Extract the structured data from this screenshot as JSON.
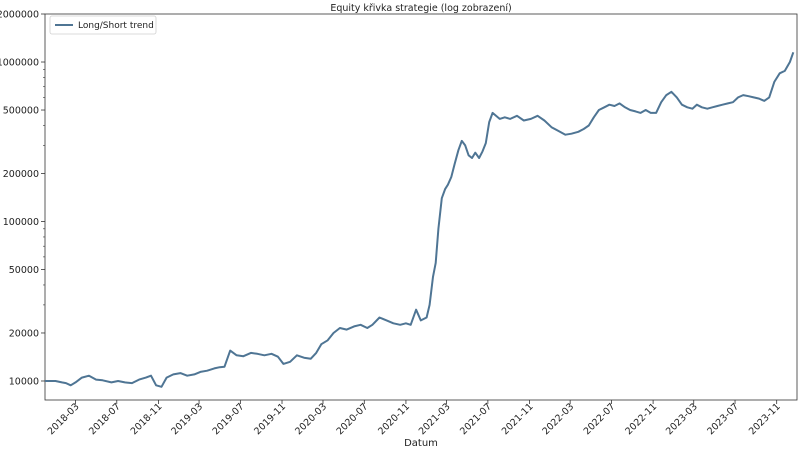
{
  "chart_data": {
    "type": "line",
    "title": "Equity křivka strategie (log zobrazení)",
    "xlabel": "Datum",
    "ylabel": "",
    "y_scale": "log",
    "ylim": [
      7600,
      2000000
    ],
    "xlim": [
      "2017-12-01",
      "2023-12-31"
    ],
    "grid": false,
    "legend_position": "top-left",
    "y_ticks": [
      {
        "value": 10000,
        "label": "10000"
      },
      {
        "value": 20000,
        "label": "20000"
      },
      {
        "value": 50000,
        "label": "50000"
      },
      {
        "value": 100000,
        "label": "100000"
      },
      {
        "value": 200000,
        "label": "200000"
      },
      {
        "value": 500000,
        "label": "500000"
      },
      {
        "value": 1000000,
        "label": "1000000"
      },
      {
        "value": 2000000,
        "label": "2000000"
      }
    ],
    "x_ticks": [
      "2018-03",
      "2018-07",
      "2018-11",
      "2019-03",
      "2019-07",
      "2019-11",
      "2020-03",
      "2020-07",
      "2020-11",
      "2021-03",
      "2021-07",
      "2021-11",
      "2022-03",
      "2022-07",
      "2022-11",
      "2023-03",
      "2023-07",
      "2023-11"
    ],
    "series": [
      {
        "name": "Long/Short trend",
        "color": "#4f7594",
        "x": [
          "2017-12-01",
          "2018-01-01",
          "2018-01-20",
          "2018-02-01",
          "2018-02-15",
          "2018-03-01",
          "2018-03-20",
          "2018-04-10",
          "2018-05-01",
          "2018-05-20",
          "2018-06-15",
          "2018-07-05",
          "2018-07-25",
          "2018-08-15",
          "2018-09-05",
          "2018-09-25",
          "2018-10-10",
          "2018-10-25",
          "2018-11-10",
          "2018-11-25",
          "2018-12-15",
          "2019-01-05",
          "2019-01-25",
          "2019-02-15",
          "2019-03-05",
          "2019-03-25",
          "2019-04-15",
          "2019-05-01",
          "2019-05-15",
          "2019-06-01",
          "2019-06-20",
          "2019-07-10",
          "2019-08-01",
          "2019-08-20",
          "2019-09-10",
          "2019-10-01",
          "2019-10-20",
          "2019-11-05",
          "2019-11-25",
          "2019-12-15",
          "2020-01-05",
          "2020-01-25",
          "2020-02-10",
          "2020-02-25",
          "2020-03-15",
          "2020-04-01",
          "2020-04-20",
          "2020-05-10",
          "2020-06-01",
          "2020-06-20",
          "2020-07-10",
          "2020-07-25",
          "2020-08-15",
          "2020-09-05",
          "2020-09-25",
          "2020-10-15",
          "2020-11-01",
          "2020-11-15",
          "2020-12-01",
          "2020-12-15",
          "2021-01-01",
          "2021-01-10",
          "2021-01-20",
          "2021-01-28",
          "2021-02-05",
          "2021-02-15",
          "2021-02-25",
          "2021-03-05",
          "2021-03-15",
          "2021-03-25",
          "2021-04-05",
          "2021-04-15",
          "2021-04-25",
          "2021-05-05",
          "2021-05-15",
          "2021-05-25",
          "2021-06-05",
          "2021-06-15",
          "2021-06-25",
          "2021-07-05",
          "2021-07-15",
          "2021-07-25",
          "2021-08-05",
          "2021-08-20",
          "2021-09-05",
          "2021-09-25",
          "2021-10-15",
          "2021-11-05",
          "2021-11-25",
          "2021-12-15",
          "2022-01-05",
          "2022-01-25",
          "2022-02-15",
          "2022-03-05",
          "2022-03-25",
          "2022-04-10",
          "2022-04-25",
          "2022-05-10",
          "2022-05-25",
          "2022-06-10",
          "2022-06-25",
          "2022-07-10",
          "2022-07-25",
          "2022-08-10",
          "2022-08-25",
          "2022-09-10",
          "2022-09-25",
          "2022-10-10",
          "2022-10-25",
          "2022-11-10",
          "2022-11-25",
          "2022-12-10",
          "2022-12-25",
          "2023-01-10",
          "2023-01-25",
          "2023-02-10",
          "2023-02-25",
          "2023-03-10",
          "2023-03-25",
          "2023-04-10",
          "2023-04-25",
          "2023-05-10",
          "2023-05-25",
          "2023-06-10",
          "2023-06-25",
          "2023-07-10",
          "2023-07-25",
          "2023-08-10",
          "2023-08-25",
          "2023-09-10",
          "2023-09-25",
          "2023-10-10",
          "2023-10-25",
          "2023-11-10",
          "2023-11-25",
          "2023-12-10",
          "2023-12-20"
        ],
        "y": [
          10000,
          10000,
          9800,
          9700,
          9400,
          9800,
          10500,
          10800,
          10200,
          10100,
          9800,
          10000,
          9800,
          9700,
          10200,
          10500,
          10800,
          9400,
          9200,
          10500,
          11000,
          11200,
          10800,
          11000,
          11400,
          11600,
          12000,
          12200,
          12300,
          15500,
          14500,
          14300,
          15000,
          14800,
          14500,
          14800,
          14200,
          12800,
          13200,
          14500,
          14000,
          13800,
          15000,
          17000,
          18000,
          20000,
          21500,
          21000,
          22000,
          22500,
          21500,
          22500,
          25000,
          24000,
          23000,
          22500,
          23000,
          22500,
          28000,
          24000,
          25000,
          30000,
          45000,
          55000,
          90000,
          140000,
          160000,
          170000,
          190000,
          230000,
          280000,
          320000,
          300000,
          260000,
          250000,
          270000,
          250000,
          275000,
          310000,
          420000,
          480000,
          460000,
          440000,
          450000,
          440000,
          460000,
          430000,
          440000,
          460000,
          430000,
          390000,
          370000,
          350000,
          355000,
          365000,
          380000,
          400000,
          450000,
          500000,
          520000,
          540000,
          530000,
          550000,
          520000,
          500000,
          490000,
          480000,
          500000,
          480000,
          480000,
          560000,
          620000,
          650000,
          600000,
          540000,
          520000,
          510000,
          540000,
          520000,
          510000,
          520000,
          530000,
          540000,
          550000,
          560000,
          600000,
          620000,
          610000,
          600000,
          590000,
          570000,
          600000,
          750000,
          850000,
          880000,
          1000000,
          1150000
        ]
      }
    ]
  }
}
